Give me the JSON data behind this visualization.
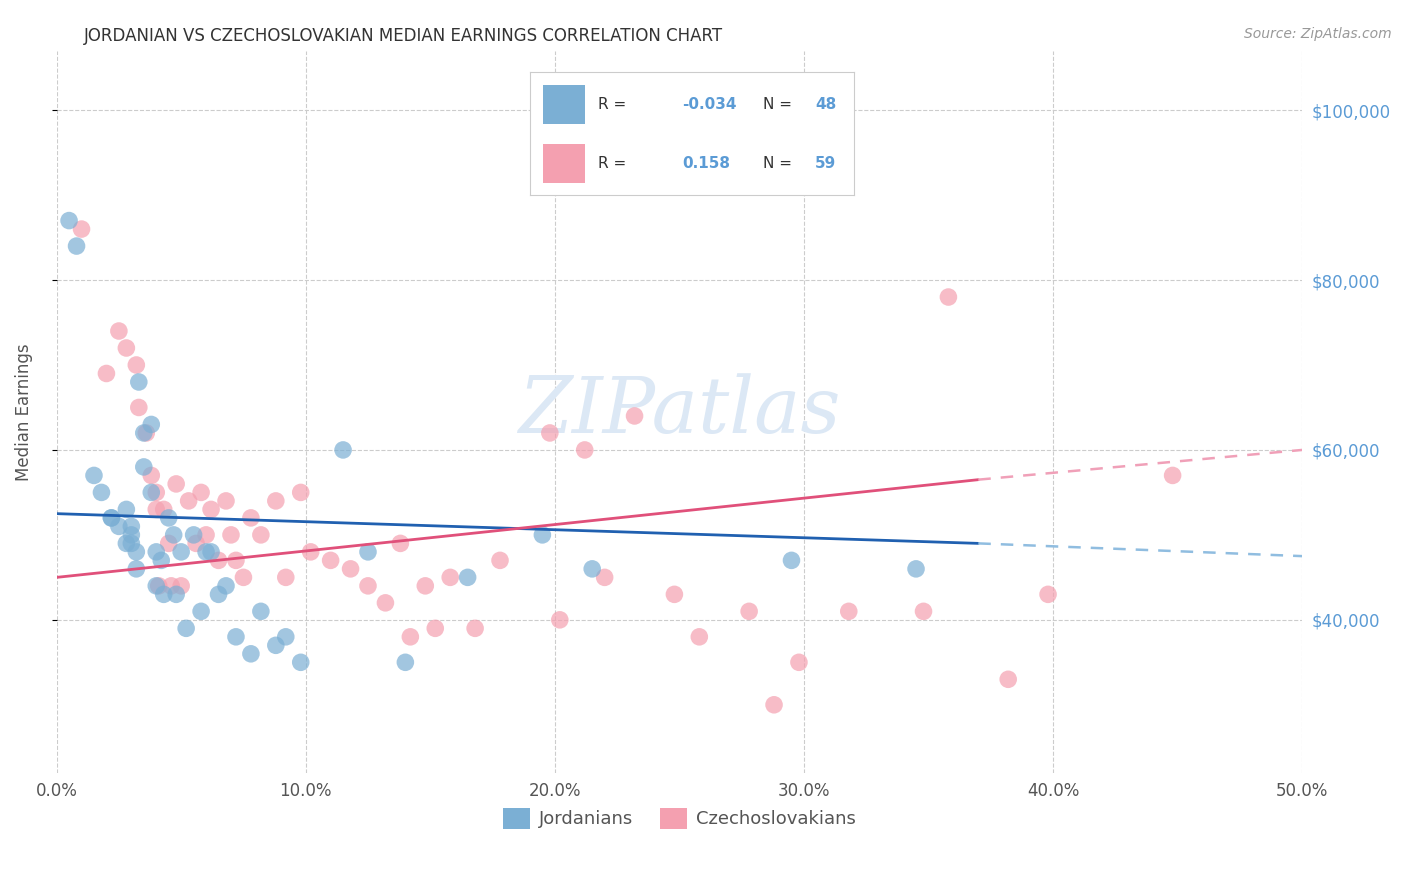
{
  "title": "JORDANIAN VS CZECHOSLOVAKIAN MEDIAN EARNINGS CORRELATION CHART",
  "source": "Source: ZipAtlas.com",
  "ylabel": "Median Earnings",
  "watermark": "ZIPatlas",
  "xlim": [
    0.0,
    0.5
  ],
  "ylim": [
    22000,
    107000
  ],
  "xtick_labels": [
    "0.0%",
    "10.0%",
    "20.0%",
    "30.0%",
    "40.0%",
    "50.0%"
  ],
  "xtick_vals": [
    0.0,
    0.1,
    0.2,
    0.3,
    0.4,
    0.5
  ],
  "ytick_labels": [
    "$40,000",
    "$60,000",
    "$80,000",
    "$100,000"
  ],
  "ytick_vals": [
    40000,
    60000,
    80000,
    100000
  ],
  "grid_color": "#cccccc",
  "background_color": "#ffffff",
  "jordanians_color": "#7bafd4",
  "czechoslovakians_color": "#f4a0b0",
  "jordanians_r": -0.034,
  "jordanians_n": 48,
  "czechoslovakians_r": 0.158,
  "czechoslovakians_n": 59,
  "jordanians_scatter_x": [
    0.005,
    0.008,
    0.015,
    0.018,
    0.022,
    0.022,
    0.025,
    0.028,
    0.028,
    0.03,
    0.03,
    0.03,
    0.032,
    0.032,
    0.033,
    0.035,
    0.035,
    0.038,
    0.038,
    0.04,
    0.04,
    0.042,
    0.043,
    0.045,
    0.047,
    0.048,
    0.05,
    0.052,
    0.055,
    0.058,
    0.06,
    0.062,
    0.065,
    0.068,
    0.072,
    0.078,
    0.082,
    0.088,
    0.092,
    0.098,
    0.115,
    0.125,
    0.14,
    0.165,
    0.195,
    0.215,
    0.295,
    0.345
  ],
  "jordanians_scatter_y": [
    87000,
    84000,
    57000,
    55000,
    52000,
    52000,
    51000,
    49000,
    53000,
    51000,
    50000,
    49000,
    48000,
    46000,
    68000,
    62000,
    58000,
    63000,
    55000,
    48000,
    44000,
    47000,
    43000,
    52000,
    50000,
    43000,
    48000,
    39000,
    50000,
    41000,
    48000,
    48000,
    43000,
    44000,
    38000,
    36000,
    41000,
    37000,
    38000,
    35000,
    60000,
    48000,
    35000,
    45000,
    50000,
    46000,
    47000,
    46000
  ],
  "czechoslovakians_scatter_x": [
    0.01,
    0.02,
    0.025,
    0.028,
    0.032,
    0.033,
    0.036,
    0.038,
    0.04,
    0.04,
    0.041,
    0.043,
    0.045,
    0.046,
    0.048,
    0.05,
    0.053,
    0.056,
    0.058,
    0.06,
    0.062,
    0.065,
    0.068,
    0.07,
    0.072,
    0.075,
    0.078,
    0.082,
    0.088,
    0.092,
    0.098,
    0.102,
    0.11,
    0.118,
    0.125,
    0.132,
    0.138,
    0.142,
    0.148,
    0.152,
    0.158,
    0.168,
    0.178,
    0.198,
    0.202,
    0.212,
    0.22,
    0.232,
    0.248,
    0.258,
    0.278,
    0.288,
    0.298,
    0.318,
    0.348,
    0.358,
    0.382,
    0.398,
    0.448
  ],
  "czechoslovakians_scatter_y": [
    86000,
    69000,
    74000,
    72000,
    70000,
    65000,
    62000,
    57000,
    55000,
    53000,
    44000,
    53000,
    49000,
    44000,
    56000,
    44000,
    54000,
    49000,
    55000,
    50000,
    53000,
    47000,
    54000,
    50000,
    47000,
    45000,
    52000,
    50000,
    54000,
    45000,
    55000,
    48000,
    47000,
    46000,
    44000,
    42000,
    49000,
    38000,
    44000,
    39000,
    45000,
    39000,
    47000,
    62000,
    40000,
    60000,
    45000,
    64000,
    43000,
    38000,
    41000,
    30000,
    35000,
    41000,
    41000,
    78000,
    33000,
    43000,
    57000
  ],
  "trend_blue_color": "#2060b0",
  "trend_pink_color": "#e0507a",
  "trend_dashed_blue_color": "#90bde0",
  "trend_dashed_pink_color": "#f0a0b8",
  "legend_blue_label": "Jordanians",
  "legend_pink_label": "Czechoslovakians",
  "title_color": "#333333",
  "axis_label_color": "#555555",
  "right_tick_color": "#5b9bd5",
  "watermark_color": "#dce8f5"
}
